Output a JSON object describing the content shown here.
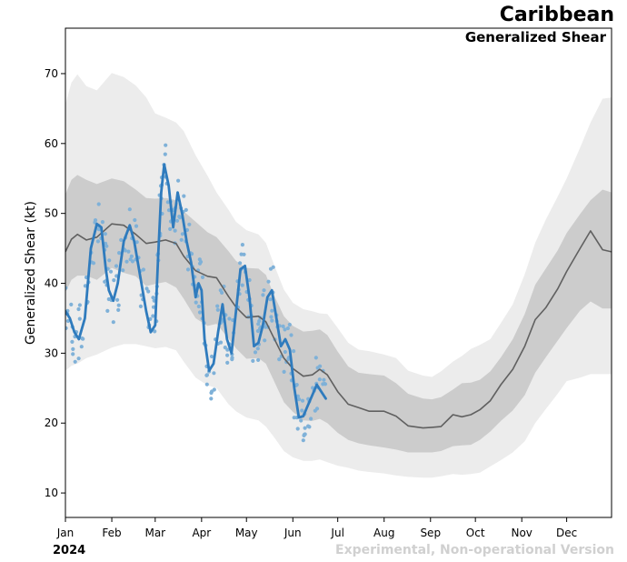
{
  "chart_data": {
    "type": "line",
    "title": "Caribbean",
    "subtitle": "Generalized Shear",
    "ylabel": "Generalized Shear (kt)",
    "xlabel": "",
    "year_label": "2024",
    "watermark": "Experimental, Non-operational Version",
    "x_unit": "day_of_year",
    "xlim": [
      1,
      366
    ],
    "ylim": [
      6.5,
      76.5
    ],
    "yticks": [
      10,
      20,
      30,
      40,
      50,
      60,
      70
    ],
    "xticks": [
      {
        "label": "Jan",
        "day": 1
      },
      {
        "label": "Feb",
        "day": 32
      },
      {
        "label": "Mar",
        "day": 61
      },
      {
        "label": "Apr",
        "day": 92
      },
      {
        "label": "May",
        "day": 122
      },
      {
        "label": "Jun",
        "day": 153
      },
      {
        "label": "Jul",
        "day": 183
      },
      {
        "label": "Aug",
        "day": 214
      },
      {
        "label": "Sep",
        "day": 245
      },
      {
        "label": "Oct",
        "day": 275
      },
      {
        "label": "Nov",
        "day": 306
      },
      {
        "label": "Dec",
        "day": 336
      }
    ],
    "colors": {
      "outer_band": "#ececec",
      "inner_band": "#cccccc",
      "climatology": "#606060",
      "current": "#2f7bbd",
      "points": "#7fb1d8"
    },
    "climatology": {
      "x": [
        1,
        5,
        9,
        15,
        22,
        32,
        40,
        48,
        55,
        61,
        68,
        75,
        80,
        88,
        96,
        102,
        110,
        115,
        122,
        130,
        135,
        140,
        147,
        153,
        160,
        166,
        171,
        176,
        183,
        190,
        197,
        204,
        214,
        222,
        230,
        240,
        246,
        252,
        260,
        266,
        272,
        278,
        285,
        292,
        300,
        308,
        315,
        322,
        330,
        336,
        345,
        352,
        360,
        366
      ],
      "mean": [
        44.5,
        46.3,
        47.0,
        46.2,
        46.6,
        48.5,
        48.3,
        47.0,
        45.7,
        45.9,
        46.2,
        45.7,
        43.9,
        41.8,
        41.0,
        40.8,
        38.1,
        36.6,
        35.1,
        35.3,
        34.5,
        32.3,
        29.3,
        27.8,
        26.7,
        26.9,
        27.7,
        26.9,
        24.5,
        22.7,
        22.2,
        21.7,
        21.7,
        21.0,
        19.6,
        19.3,
        19.4,
        19.5,
        21.2,
        20.9,
        21.2,
        21.9,
        23.2,
        25.5,
        27.7,
        31.0,
        34.8,
        36.5,
        39.2,
        41.7,
        45.0,
        47.5,
        44.8,
        44.5
      ],
      "p25": [
        38.7,
        40.5,
        41.1,
        41.1,
        40.5,
        42.2,
        41.5,
        41.0,
        39.6,
        39.9,
        40.2,
        39.4,
        37.8,
        35.0,
        33.9,
        34.2,
        32.1,
        30.7,
        29.2,
        29.3,
        28.5,
        26.2,
        23.0,
        21.6,
        20.4,
        20.3,
        20.6,
        20.0,
        18.6,
        17.6,
        17.1,
        16.8,
        16.5,
        16.2,
        15.8,
        15.8,
        15.8,
        16.0,
        16.7,
        16.8,
        16.9,
        17.6,
        18.8,
        20.3,
        21.8,
        24.0,
        27.2,
        29.4,
        31.8,
        33.6,
        36.1,
        37.4,
        36.4,
        36.4
      ],
      "p75": [
        52.7,
        54.8,
        55.5,
        54.8,
        54.2,
        55.0,
        54.6,
        53.4,
        52.2,
        52.1,
        52.2,
        51.9,
        50.3,
        48.8,
        47.3,
        46.6,
        44.6,
        43.2,
        42.2,
        42.1,
        41.2,
        38.5,
        35.3,
        33.9,
        33.1,
        33.2,
        33.4,
        32.6,
        30.2,
        28.1,
        27.2,
        27.0,
        26.8,
        25.7,
        24.2,
        23.5,
        23.4,
        23.7,
        24.8,
        25.7,
        25.8,
        26.2,
        27.4,
        29.4,
        32.0,
        35.6,
        39.8,
        42.1,
        44.7,
        47.2,
        49.9,
        51.9,
        53.4,
        53.0
      ],
      "p05": [
        27.5,
        28.2,
        28.5,
        29.3,
        29.8,
        30.8,
        31.3,
        31.3,
        31.0,
        30.7,
        30.9,
        30.4,
        28.8,
        26.5,
        25.4,
        25.0,
        22.7,
        21.7,
        20.8,
        20.4,
        19.5,
        18.1,
        16.0,
        15.1,
        14.6,
        14.6,
        14.8,
        14.4,
        13.9,
        13.6,
        13.2,
        13.0,
        12.8,
        12.5,
        12.3,
        12.2,
        12.2,
        12.4,
        12.7,
        12.6,
        12.7,
        12.9,
        13.8,
        14.7,
        15.8,
        17.4,
        20.0,
        22.0,
        24.2,
        26.0,
        26.5,
        27.0,
        27.0,
        27.0
      ],
      "p95": [
        65.6,
        68.7,
        69.9,
        68.2,
        67.6,
        70.1,
        69.5,
        68.3,
        66.6,
        64.3,
        63.7,
        63.0,
        61.8,
        58.3,
        55.4,
        53.0,
        50.5,
        48.8,
        47.6,
        47.0,
        45.8,
        42.9,
        39.1,
        37.2,
        36.3,
        36.0,
        35.7,
        35.6,
        33.6,
        31.5,
        30.5,
        30.3,
        29.8,
        29.3,
        27.5,
        26.8,
        26.6,
        27.4,
        28.8,
        29.6,
        30.6,
        31.2,
        32.0,
        34.3,
        37.0,
        41.3,
        45.8,
        49.1,
        52.4,
        55.0,
        59.4,
        63.0,
        66.4,
        66.6
      ]
    },
    "current_2024": {
      "x": [
        1,
        4,
        7,
        10,
        14,
        18,
        22,
        25,
        28,
        30,
        33,
        36,
        40,
        44,
        47,
        51,
        55,
        58,
        61,
        63,
        65,
        67,
        70,
        73,
        76,
        79,
        82,
        85,
        88,
        90,
        92,
        94,
        97,
        100,
        103,
        106,
        109,
        112,
        115,
        118,
        121,
        124,
        127,
        130,
        133,
        136,
        139,
        142,
        145,
        148,
        151,
        154,
        157,
        160,
        163,
        166,
        169,
        172,
        175
      ],
      "values": [
        36.0,
        35.0,
        33.0,
        32.0,
        35.0,
        45.0,
        48.5,
        48.0,
        42.0,
        39.0,
        37.5,
        40.0,
        46.0,
        48.3,
        46.0,
        41.0,
        36.0,
        33.0,
        34.0,
        44.0,
        53.0,
        57.0,
        54.0,
        48.0,
        53.0,
        50.0,
        46.0,
        43.0,
        38.0,
        40.0,
        39.0,
        32.0,
        27.5,
        28.5,
        33.0,
        37.0,
        32.0,
        30.0,
        36.0,
        42.0,
        42.5,
        38.0,
        31.0,
        31.5,
        34.0,
        38.0,
        39.0,
        35.0,
        31.0,
        32.0,
        30.5,
        25.0,
        20.8,
        21.0,
        22.5,
        24.0,
        25.5,
        24.5,
        23.5
      ]
    }
  }
}
